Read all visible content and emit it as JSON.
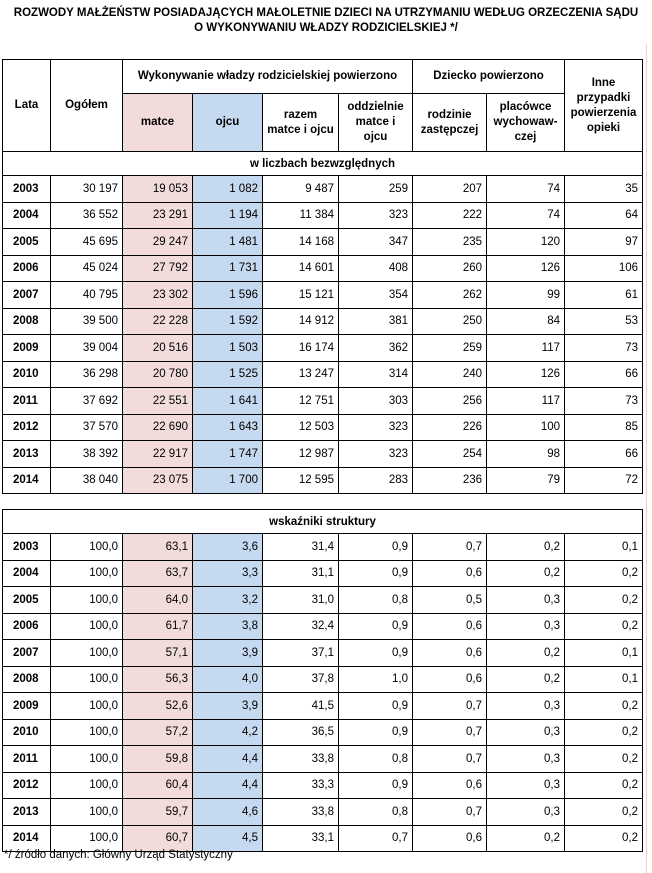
{
  "title": {
    "line1": "ROZWODY MAŁŻEŃSTW POSIADAJĄCYCH MAŁOLETNIE DZIECI NA UTRZYMANIU WEDŁUG ORZECZENIA SĄDU",
    "line2": "O WYKONYWANIU WŁADZY RODZICIELSKIEJ */"
  },
  "headers": {
    "lata": "Lata",
    "ogolem": "Ogółem",
    "wladza_group": "Wykonywanie władzy rodzicielskiej powierzono",
    "matce": "matce",
    "ojcu": "ojcu",
    "razem": "razem matce i ojcu",
    "oddzielnie": "oddzielnie matce i ojcu",
    "dziecko_group": "Dziecko powierzono",
    "rodzinie": "rodzinie zastępczej",
    "placowce": "placówce wychowaw-czej",
    "inne": "Inne przypadki powierzenia opieki"
  },
  "sections": {
    "absolute": "w liczbach bezwzględnych",
    "structure": "wskaźniki struktury"
  },
  "colors": {
    "matce_bg": "#f2dcdb",
    "ojcu_bg": "#c5d9f1"
  },
  "absolute_rows": [
    [
      "2003",
      "30 197",
      "19 053",
      "1 082",
      "9 487",
      "259",
      "207",
      "74",
      "35"
    ],
    [
      "2004",
      "36 552",
      "23 291",
      "1 194",
      "11 384",
      "323",
      "222",
      "74",
      "64"
    ],
    [
      "2005",
      "45 695",
      "29 247",
      "1 481",
      "14 168",
      "347",
      "235",
      "120",
      "97"
    ],
    [
      "2006",
      "45 024",
      "27 792",
      "1 731",
      "14 601",
      "408",
      "260",
      "126",
      "106"
    ],
    [
      "2007",
      "40 795",
      "23 302",
      "1 596",
      "15 121",
      "354",
      "262",
      "99",
      "61"
    ],
    [
      "2008",
      "39 500",
      "22 228",
      "1 592",
      "14 912",
      "381",
      "250",
      "84",
      "53"
    ],
    [
      "2009",
      "39 004",
      "20 516",
      "1 503",
      "16 174",
      "362",
      "259",
      "117",
      "73"
    ],
    [
      "2010",
      "36 298",
      "20 780",
      "1 525",
      "13 247",
      "314",
      "240",
      "126",
      "66"
    ],
    [
      "2011",
      "37 692",
      "22 551",
      "1 641",
      "12 751",
      "303",
      "256",
      "117",
      "73"
    ],
    [
      "2012",
      "37 570",
      "22 690",
      "1 643",
      "12 503",
      "323",
      "226",
      "100",
      "85"
    ],
    [
      "2013",
      "38 392",
      "22 917",
      "1 747",
      "12 987",
      "323",
      "254",
      "98",
      "66"
    ],
    [
      "2014",
      "38 040",
      "23 075",
      "1 700",
      "12 595",
      "283",
      "236",
      "79",
      "72"
    ]
  ],
  "structure_rows": [
    [
      "2003",
      "100,0",
      "63,1",
      "3,6",
      "31,4",
      "0,9",
      "0,7",
      "0,2",
      "0,1"
    ],
    [
      "2004",
      "100,0",
      "63,7",
      "3,3",
      "31,1",
      "0,9",
      "0,6",
      "0,2",
      "0,2"
    ],
    [
      "2005",
      "100,0",
      "64,0",
      "3,2",
      "31,0",
      "0,8",
      "0,5",
      "0,3",
      "0,2"
    ],
    [
      "2006",
      "100,0",
      "61,7",
      "3,8",
      "32,4",
      "0,9",
      "0,6",
      "0,3",
      "0,2"
    ],
    [
      "2007",
      "100,0",
      "57,1",
      "3,9",
      "37,1",
      "0,9",
      "0,6",
      "0,2",
      "0,1"
    ],
    [
      "2008",
      "100,0",
      "56,3",
      "4,0",
      "37,8",
      "1,0",
      "0,6",
      "0,2",
      "0,1"
    ],
    [
      "2009",
      "100,0",
      "52,6",
      "3,9",
      "41,5",
      "0,9",
      "0,7",
      "0,3",
      "0,2"
    ],
    [
      "2010",
      "100,0",
      "57,2",
      "4,2",
      "36,5",
      "0,9",
      "0,7",
      "0,3",
      "0,2"
    ],
    [
      "2011",
      "100,0",
      "59,8",
      "4,4",
      "33,8",
      "0,8",
      "0,7",
      "0,3",
      "0,2"
    ],
    [
      "2012",
      "100,0",
      "60,4",
      "4,4",
      "33,3",
      "0,9",
      "0,6",
      "0,3",
      "0,2"
    ],
    [
      "2013",
      "100,0",
      "59,7",
      "4,6",
      "33,8",
      "0,8",
      "0,7",
      "0,3",
      "0,2"
    ],
    [
      "2014",
      "100,0",
      "60,7",
      "4,5",
      "33,1",
      "0,7",
      "0,6",
      "0,2",
      "0,2"
    ]
  ],
  "footnote": "*/ źródło danych: Główny Urząd Statystyczny"
}
